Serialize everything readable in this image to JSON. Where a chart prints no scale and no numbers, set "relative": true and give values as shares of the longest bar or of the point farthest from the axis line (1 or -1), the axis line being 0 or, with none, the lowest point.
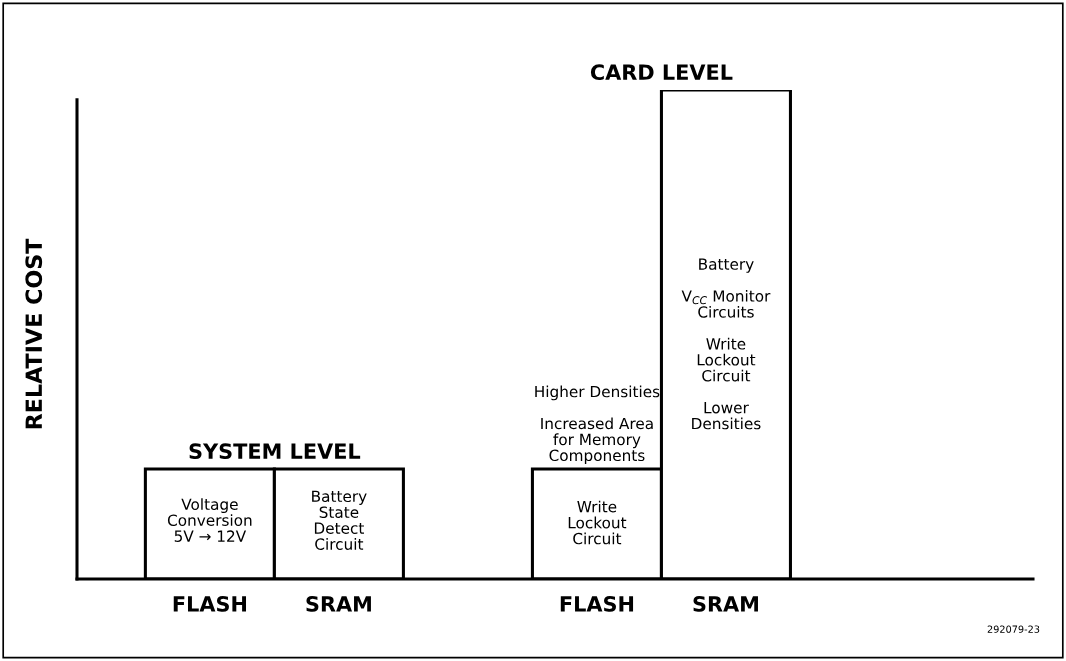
{
  "chart_data": {
    "type": "bar",
    "relative": true,
    "ylabel": "RELATIVE COST",
    "categories": [
      "FLASH",
      "SRAM",
      null,
      "FLASH",
      "SRAM"
    ],
    "values": [
      0.225,
      0.225,
      null,
      0.225,
      1
    ],
    "color": "#ffffff",
    "grid": false,
    "legend": false,
    "annotations": [
      "SYSTEM LEVEL",
      "CARD LEVEL",
      "Voltage\nConversion\n5V → 12V",
      "Battery\nState\nDetect\nCircuit",
      "Write\nLockout\nCircuit",
      "Higher Densities\n\nIncreased Area\nfor Memory\nComponents",
      "Battery\n\nV$_{CC}$ Monitor\nCircuits\n\nWrite\nLockout\nCircuit\n\nLower\nDensities",
      "292079-23"
    ]
  }
}
